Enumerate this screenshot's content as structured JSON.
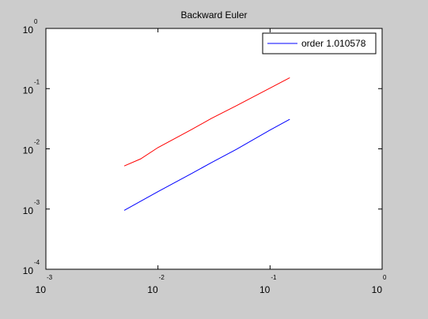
{
  "chart_data": {
    "type": "line",
    "title": "Backward Euler",
    "xlabel": "",
    "ylabel": "",
    "xscale": "log",
    "yscale": "log",
    "xlim": [
      0.001,
      1
    ],
    "ylim": [
      0.0001,
      1
    ],
    "grid": false,
    "legend_position": "top-right",
    "x_ticks": [
      {
        "base": "10",
        "exp": "-3",
        "value": 0.001
      },
      {
        "base": "10",
        "exp": "-2",
        "value": 0.01
      },
      {
        "base": "10",
        "exp": "-1",
        "value": 0.1
      },
      {
        "base": "10",
        "exp": "0",
        "value": 1
      }
    ],
    "y_ticks": [
      {
        "base": "10",
        "exp": "-4",
        "value": 0.0001
      },
      {
        "base": "10",
        "exp": "-3",
        "value": 0.001
      },
      {
        "base": "10",
        "exp": "-2",
        "value": 0.01
      },
      {
        "base": "10",
        "exp": "-1",
        "value": 0.1
      },
      {
        "base": "10",
        "exp": "0",
        "value": 1
      }
    ],
    "series": [
      {
        "name": "order 1.010578",
        "color": "#0000ff",
        "x": [
          0.005,
          0.01,
          0.02,
          0.03,
          0.05,
          0.1,
          0.15
        ],
        "y": [
          0.00095,
          0.00195,
          0.0039,
          0.0059,
          0.0098,
          0.0205,
          0.031
        ]
      },
      {
        "color": "#ff0000",
        "x": [
          0.005,
          0.007,
          0.01,
          0.02,
          0.03,
          0.05,
          0.1,
          0.15
        ],
        "y": [
          0.0052,
          0.0068,
          0.0105,
          0.021,
          0.032,
          0.052,
          0.102,
          0.152
        ]
      }
    ]
  }
}
